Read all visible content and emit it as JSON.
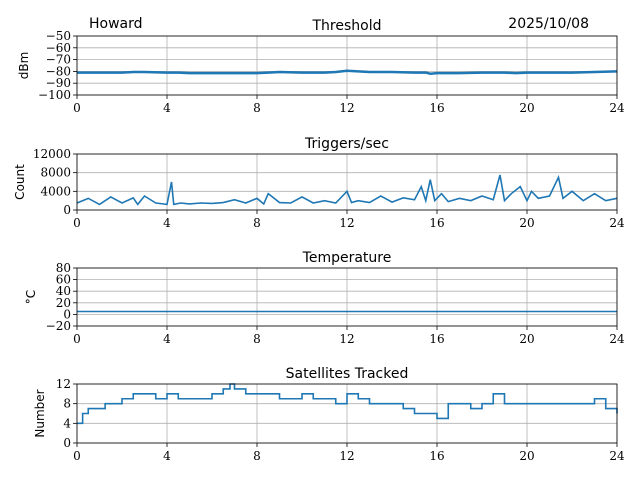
{
  "header": {
    "station": "Howard",
    "date": "2025/10/08"
  },
  "chart_data": [
    {
      "type": "line",
      "title": "Threshold",
      "xlabel": "",
      "ylabel": "dBm",
      "xlim": [
        0,
        24
      ],
      "ylim": [
        -100,
        -50
      ],
      "xticks": [
        "0",
        "4",
        "8",
        "12",
        "16",
        "20",
        "24"
      ],
      "yticks": [
        "−100",
        "−90",
        "−80",
        "−70",
        "−60",
        "−50"
      ],
      "ytick_values": [
        -100,
        -90,
        -80,
        -70,
        -60,
        -50
      ],
      "x": [
        0,
        1,
        2,
        2.5,
        3,
        4,
        4.5,
        5,
        6,
        7,
        8,
        8.5,
        9,
        10,
        11,
        11.5,
        12,
        12.5,
        13,
        14,
        15,
        15.5,
        15.7,
        16,
        17,
        18,
        19,
        19.5,
        20,
        21,
        22,
        23,
        24
      ],
      "y": [
        -81,
        -81,
        -81,
        -80.5,
        -80.5,
        -81,
        -81,
        -81.5,
        -81.5,
        -81.5,
        -81.5,
        -81,
        -80.5,
        -81,
        -81,
        -80.5,
        -79.5,
        -80,
        -80.5,
        -80.5,
        -81,
        -81,
        -82,
        -81.5,
        -81.5,
        -81,
        -81,
        -81.5,
        -81,
        -81,
        -81,
        -80.5,
        -80
      ]
    },
    {
      "type": "line",
      "title": "Triggers/sec",
      "xlabel": "",
      "ylabel": "Count",
      "xlim": [
        0,
        24
      ],
      "ylim": [
        0,
        12000
      ],
      "xticks": [
        "0",
        "4",
        "8",
        "12",
        "16",
        "20",
        "24"
      ],
      "yticks": [
        "0",
        "4000",
        "8000",
        "12000"
      ],
      "ytick_values": [
        0,
        4000,
        8000,
        12000
      ],
      "x": [
        0,
        0.5,
        1,
        1.5,
        2,
        2.5,
        2.7,
        3,
        3.5,
        4,
        4.2,
        4.3,
        4.6,
        5,
        5.5,
        6,
        6.5,
        7,
        7.5,
        8,
        8.3,
        8.5,
        9,
        9.5,
        10,
        10.5,
        11,
        11.5,
        12,
        12.2,
        12.5,
        13,
        13.5,
        14,
        14.5,
        15,
        15.3,
        15.5,
        15.7,
        15.9,
        16.2,
        16.5,
        17,
        17.5,
        18,
        18.5,
        18.8,
        19,
        19.3,
        19.7,
        20,
        20.2,
        20.5,
        21,
        21.4,
        21.6,
        22,
        22.5,
        23,
        23.5,
        24
      ],
      "y": [
        1500,
        2500,
        1200,
        2800,
        1500,
        2600,
        1200,
        3000,
        1500,
        1200,
        6000,
        1200,
        1500,
        1300,
        1500,
        1400,
        1600,
        2200,
        1500,
        2500,
        1300,
        3500,
        1600,
        1500,
        2800,
        1500,
        2000,
        1500,
        4000,
        1600,
        2000,
        1600,
        3000,
        1700,
        2600,
        2200,
        5000,
        2000,
        6500,
        2000,
        3500,
        1800,
        2500,
        2000,
        3000,
        2200,
        7500,
        2000,
        3500,
        5000,
        2000,
        4000,
        2500,
        3000,
        7000,
        2500,
        4000,
        2000,
        3500,
        2000,
        2500
      ]
    },
    {
      "type": "line",
      "title": "Temperature",
      "xlabel": "",
      "ylabel": "°C",
      "xlim": [
        0,
        24
      ],
      "ylim": [
        -20,
        80
      ],
      "xticks": [
        "0",
        "4",
        "8",
        "12",
        "16",
        "20",
        "24"
      ],
      "yticks": [
        "−20",
        "0",
        "20",
        "40",
        "60",
        "80"
      ],
      "ytick_values": [
        -20,
        0,
        20,
        40,
        60,
        80
      ],
      "x": [
        0,
        24
      ],
      "y": [
        5,
        5
      ]
    },
    {
      "type": "line",
      "title": "Satellites Tracked",
      "xlabel": "",
      "ylabel": "Number",
      "xlim": [
        0,
        24
      ],
      "ylim": [
        0,
        12
      ],
      "xticks": [
        "0",
        "4",
        "8",
        "12",
        "16",
        "20",
        "24"
      ],
      "yticks": [
        "0",
        "4",
        "8",
        "12"
      ],
      "ytick_values": [
        0,
        4,
        8,
        12
      ],
      "x": [
        0,
        0.25,
        0.5,
        1,
        1.25,
        1.5,
        2,
        2.5,
        3,
        3.5,
        4,
        4.5,
        5,
        5.5,
        6,
        6.5,
        6.8,
        7,
        7.5,
        8,
        8.5,
        9,
        9.5,
        10,
        10.5,
        11,
        11.5,
        12,
        12.5,
        13,
        13.5,
        14,
        14.5,
        15,
        15.5,
        16,
        16.5,
        17,
        17.5,
        18,
        18.5,
        19,
        19.5,
        20,
        20.5,
        21,
        21.5,
        22,
        22.5,
        23,
        23.5,
        24
      ],
      "y": [
        4,
        6,
        7,
        7,
        8,
        8,
        9,
        10,
        10,
        9,
        10,
        9,
        9,
        9,
        10,
        11,
        12,
        11,
        10,
        10,
        10,
        9,
        9,
        10,
        9,
        9,
        8,
        10,
        9,
        8,
        8,
        8,
        7,
        6,
        6,
        5,
        8,
        8,
        7,
        8,
        10,
        8,
        8,
        8,
        8,
        8,
        8,
        8,
        8,
        9,
        7,
        6
      ]
    }
  ],
  "colors": {
    "line": "#1f77b4",
    "grid": "#b0b0b0"
  }
}
